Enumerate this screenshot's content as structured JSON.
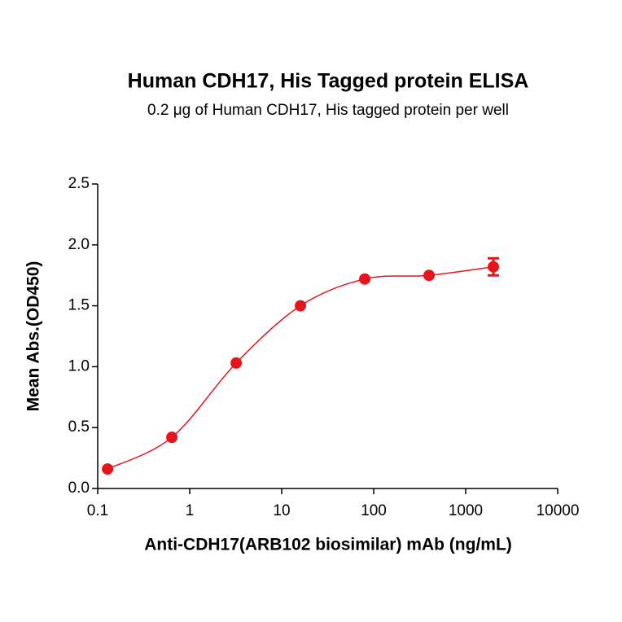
{
  "chart_data": {
    "type": "scatter",
    "title": "Human CDH17, His Tagged protein ELISA",
    "subtitle": "0.2 μg of Human CDH17, His tagged protein per well",
    "x_label": "Anti-CDH17(ARB102 biosimilar) mAb (ng/mL)",
    "y_label": "Mean Abs.(OD450)",
    "x_scale": "log",
    "x": [
      0.128,
      0.64,
      3.2,
      16,
      80,
      400,
      2000
    ],
    "series": [
      {
        "color": "#e8141c",
        "values": [
          0.16,
          0.42,
          1.03,
          1.5,
          1.72,
          1.75,
          1.82
        ],
        "errors": [
          null,
          null,
          null,
          null,
          null,
          null,
          0.07
        ]
      }
    ],
    "xlim": [
      0.1,
      10000
    ],
    "xticks": [
      0.1,
      1,
      10,
      100,
      1000,
      10000
    ],
    "ylim": [
      0,
      2.5
    ],
    "yticks": [
      {
        "value": 0,
        "label": "0.0"
      },
      0.5,
      {
        "value": 1,
        "label": "1.0"
      },
      1.5,
      {
        "value": 2,
        "label": "2.0"
      },
      2.5
    ]
  }
}
